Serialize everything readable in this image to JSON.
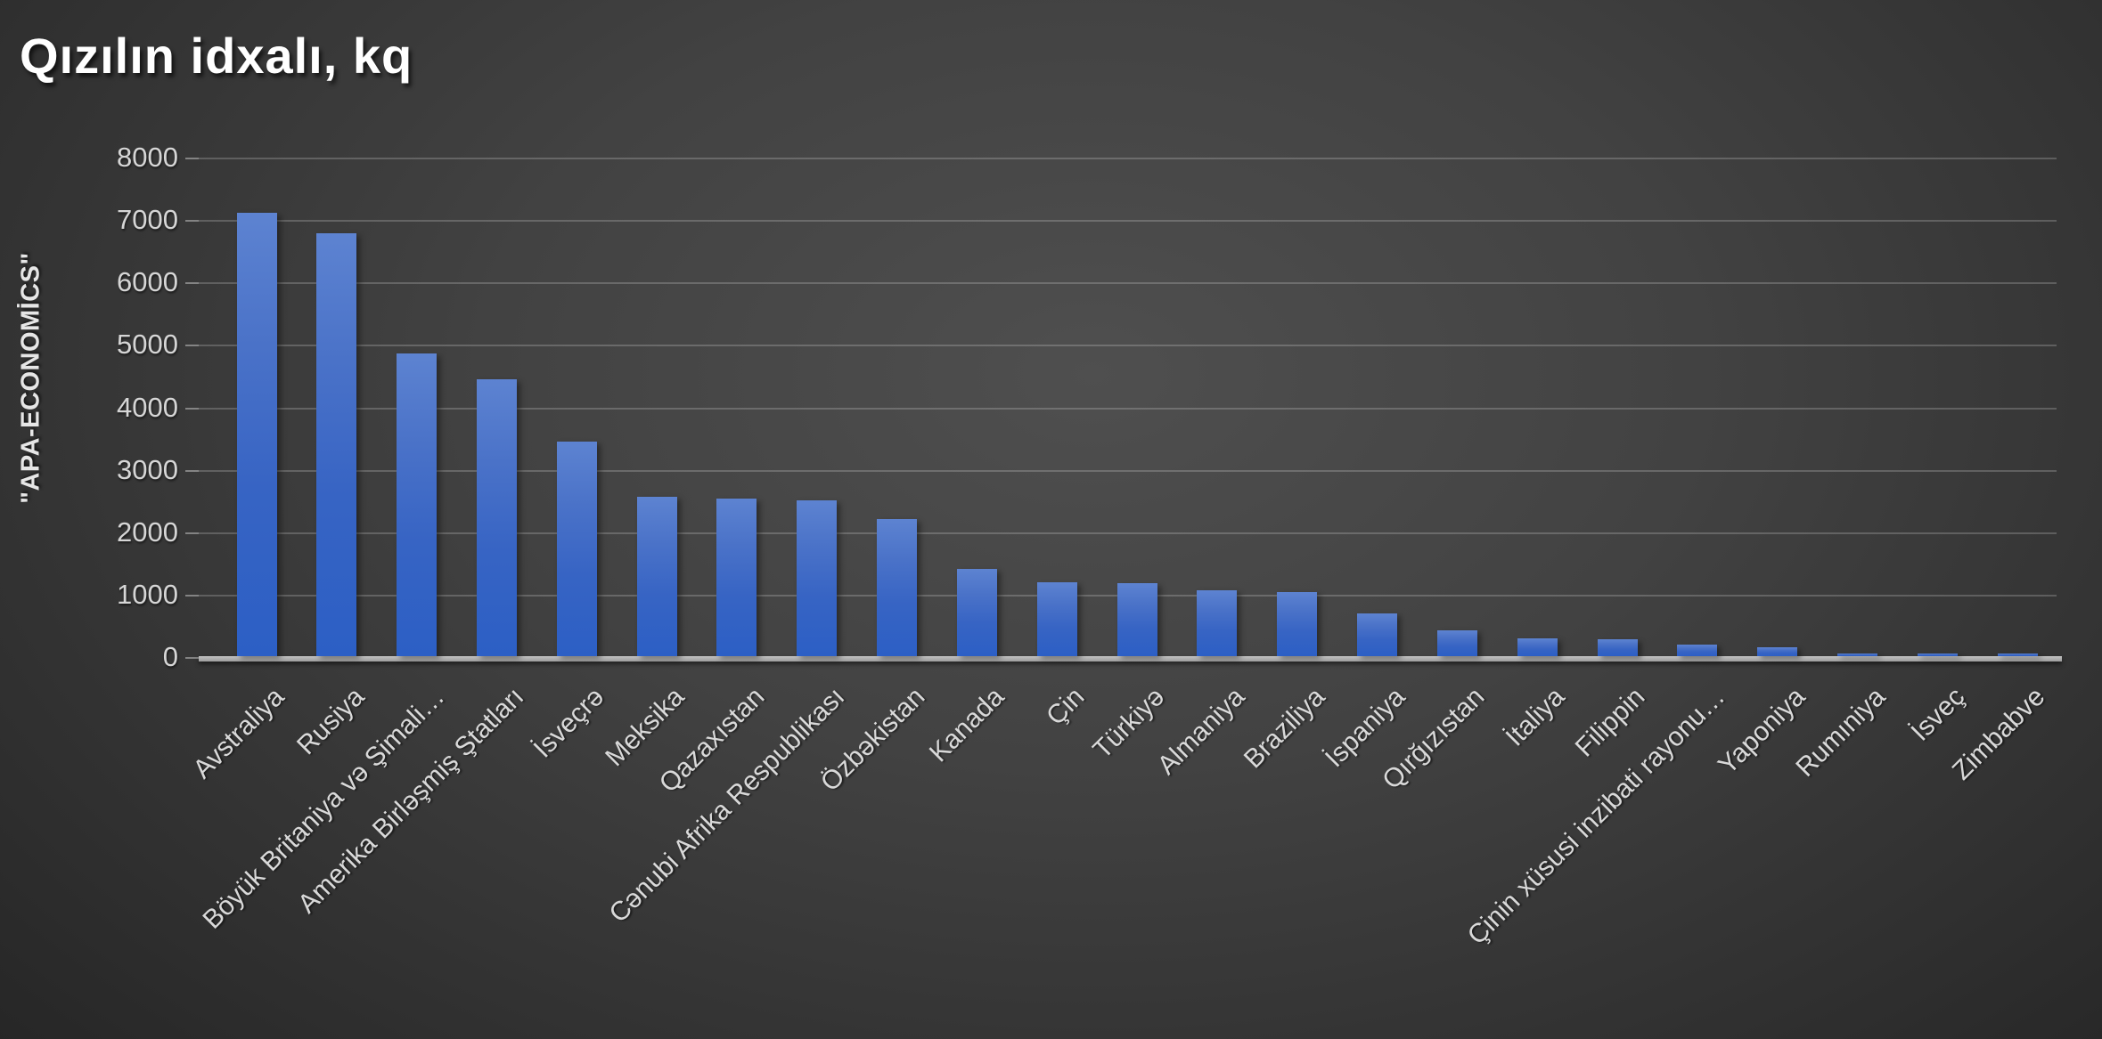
{
  "title": "Qızılın idxalı, kq",
  "y_axis_title": "\"APA-ECONOMİCS\"",
  "chart_data": {
    "type": "bar",
    "title": "Qızılın idxalı, kq",
    "xlabel": "",
    "ylabel": "\"APA-ECONOMİCS\"",
    "ylim": [
      0,
      8000
    ],
    "ytick_step": 1000,
    "grid": true,
    "legend": "none",
    "bar_color_top": "#5d83d1",
    "bar_color_bottom": "#2c5fc5",
    "background_color": "#3d3d3d",
    "text_color": "#d9d9d9",
    "categories": [
      "Avstraliya",
      "Rusiya",
      "Böyük Britaniya və Şimali…",
      "Amerika Birləşmiş Ştatları",
      "İsveçrə",
      "Meksika",
      "Qazaxıstan",
      "Cənubi Afrika Respublikası",
      "Özbəkistan",
      "Kanada",
      "Çin",
      "Türkiyə",
      "Almaniya",
      "Braziliya",
      "İspaniya",
      "Qırğızıstan",
      "İtaliya",
      "Filippin",
      "Çinin xüsusi inzibati rayonu…",
      "Yaponiya",
      "Rumıniya",
      "İsveç",
      "Zimbabve"
    ],
    "values": [
      7100,
      6780,
      4850,
      4440,
      3440,
      2550,
      2530,
      2500,
      2190,
      1400,
      1190,
      1170,
      1060,
      1020,
      690,
      420,
      290,
      270,
      180,
      140,
      40,
      25,
      15
    ]
  }
}
